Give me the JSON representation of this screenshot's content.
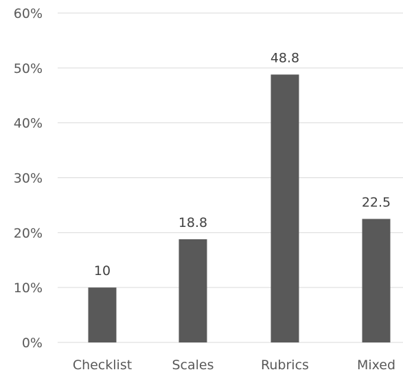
{
  "chart_data": {
    "type": "bar",
    "title": "",
    "xlabel": "",
    "ylabel": "",
    "categories": [
      "Checklist",
      "Scales",
      "Rubrics",
      "Mixed"
    ],
    "values": [
      10,
      18.8,
      48.8,
      22.5
    ],
    "data_labels": [
      "10",
      "18.8",
      "48.8",
      "22.5"
    ],
    "ylim": [
      0,
      60
    ],
    "y_ticks": [
      0,
      10,
      20,
      30,
      40,
      50,
      60
    ],
    "y_tick_labels": [
      "0%",
      "10%",
      "20%",
      "30%",
      "40%",
      "50%",
      "60%"
    ],
    "grid": true,
    "legend": "none",
    "colors": {
      "bar": "#595959"
    }
  }
}
